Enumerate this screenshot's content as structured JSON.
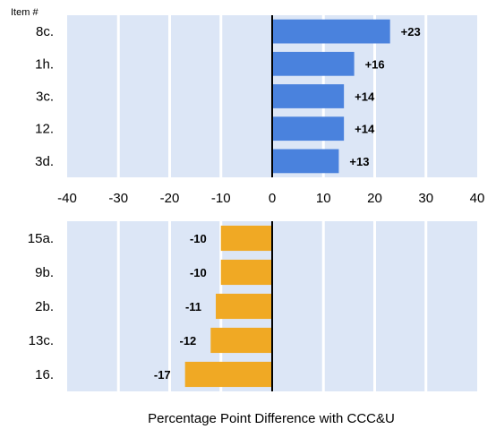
{
  "chart_data": {
    "type": "bar",
    "orientation": "horizontal",
    "category_header": "Item #",
    "xlabel": "Percentage Point Difference with CCC&U",
    "xlim": [
      -40,
      40
    ],
    "x_ticks": [
      "-40",
      "-30",
      "-20",
      "-10",
      "0",
      "10",
      "20",
      "30",
      "40"
    ],
    "grid": true,
    "background_color": "#dce6f6",
    "panels": [
      {
        "categories": [
          "8c.",
          "1h.",
          "3c.",
          "12.",
          "3d."
        ],
        "values": [
          23,
          16,
          14,
          14,
          13
        ],
        "labels": [
          "+23",
          "+16",
          "+14",
          "+14",
          "+13"
        ],
        "color": "#4a82dd"
      },
      {
        "categories": [
          "15a.",
          "9b.",
          "2b.",
          "13c.",
          "16."
        ],
        "values": [
          -10,
          -10,
          -11,
          -12,
          -17
        ],
        "labels": [
          "-10",
          "-10",
          "-11",
          "-12",
          "-17"
        ],
        "color": "#f0a924"
      }
    ]
  }
}
